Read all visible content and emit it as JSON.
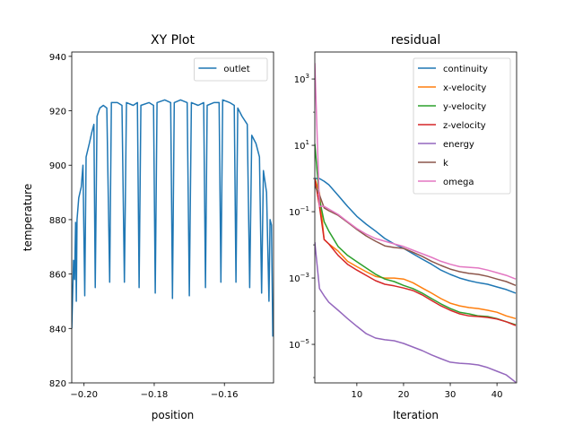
{
  "chart_data": [
    {
      "type": "line",
      "title": "XY Plot",
      "xlabel": "position",
      "ylabel": "temperature",
      "xlim": [
        -0.2035,
        -0.146
      ],
      "ylim": [
        820,
        941.6
      ],
      "xticks": [
        -0.2,
        -0.18,
        -0.16
      ],
      "xtick_labels": [
        "−0.20",
        "−0.18",
        "−0.16"
      ],
      "yticks": [
        820,
        840,
        860,
        880,
        900,
        920,
        940
      ],
      "ytick_labels": [
        "820",
        "840",
        "860",
        "880",
        "900",
        "920",
        "940"
      ],
      "grid": false,
      "legend": "top-right",
      "series": [
        {
          "name": "outlet",
          "color": "#1f77b4",
          "points": [
            [
              -0.2035,
              840
            ],
            [
              -0.203,
              865
            ],
            [
              -0.2027,
              858
            ],
            [
              -0.2024,
              879
            ],
            [
              -0.2022,
              850
            ],
            [
              -0.202,
              880
            ],
            [
              -0.2015,
              888
            ],
            [
              -0.2008,
              892
            ],
            [
              -0.2003,
              900
            ],
            [
              -0.1998,
              852
            ],
            [
              -0.1994,
              903
            ],
            [
              -0.1985,
              908
            ],
            [
              -0.1978,
              912
            ],
            [
              -0.1972,
              915
            ],
            [
              -0.1968,
              855
            ],
            [
              -0.1963,
              918
            ],
            [
              -0.1955,
              921
            ],
            [
              -0.1945,
              922
            ],
            [
              -0.1935,
              921
            ],
            [
              -0.1927,
              857
            ],
            [
              -0.1922,
              923
            ],
            [
              -0.1905,
              923
            ],
            [
              -0.1892,
              922
            ],
            [
              -0.1885,
              857
            ],
            [
              -0.1879,
              923
            ],
            [
              -0.186,
              922
            ],
            [
              -0.1848,
              923
            ],
            [
              -0.1843,
              855
            ],
            [
              -0.1838,
              922
            ],
            [
              -0.1815,
              923
            ],
            [
              -0.1802,
              922
            ],
            [
              -0.1797,
              853
            ],
            [
              -0.1792,
              923
            ],
            [
              -0.177,
              924
            ],
            [
              -0.1753,
              923
            ],
            [
              -0.1748,
              851
            ],
            [
              -0.1743,
              923
            ],
            [
              -0.1725,
              924
            ],
            [
              -0.1706,
              923
            ],
            [
              -0.17,
              852
            ],
            [
              -0.1694,
              923
            ],
            [
              -0.1675,
              922
            ],
            [
              -0.1659,
              923
            ],
            [
              -0.1654,
              855
            ],
            [
              -0.1649,
              922
            ],
            [
              -0.163,
              923
            ],
            [
              -0.1615,
              923
            ],
            [
              -0.161,
              857
            ],
            [
              -0.1605,
              924
            ],
            [
              -0.1585,
              923
            ],
            [
              -0.1572,
              922
            ],
            [
              -0.1567,
              857
            ],
            [
              -0.1562,
              921
            ],
            [
              -0.155,
              918
            ],
            [
              -0.1535,
              915
            ],
            [
              -0.1528,
              855
            ],
            [
              -0.1522,
              911
            ],
            [
              -0.151,
              908
            ],
            [
              -0.15,
              903
            ],
            [
              -0.1494,
              853
            ],
            [
              -0.1489,
              898
            ],
            [
              -0.148,
              890
            ],
            [
              -0.1473,
              850
            ],
            [
              -0.147,
              880
            ],
            [
              -0.1466,
              878
            ],
            [
              -0.1462,
              837
            ]
          ]
        }
      ]
    },
    {
      "type": "line",
      "title": "residual",
      "xlabel": "Iteration",
      "ylabel": "",
      "yscale": "log",
      "xlim": [
        1,
        44.2
      ],
      "ylim": [
        6.9e-07,
        6500
      ],
      "xticks": [
        10,
        20,
        30,
        40
      ],
      "xtick_labels": [
        "10",
        "20",
        "30",
        "40"
      ],
      "yticks": [
        1000,
        10,
        0.1,
        0.001,
        1e-05
      ],
      "ytick_labels": [
        [
          "10",
          "3"
        ],
        [
          "10",
          "1"
        ],
        [
          "10",
          "−1"
        ],
        [
          "10",
          "−3"
        ],
        [
          "10",
          "−5"
        ]
      ],
      "yminor": [
        10000,
        100,
        1,
        0.01,
        0.0001,
        1e-06
      ],
      "grid": false,
      "legend": "top-right",
      "x": [
        1,
        2,
        3,
        4,
        6,
        8,
        10,
        12,
        14,
        16,
        18,
        20,
        22,
        24,
        26,
        28,
        30,
        32,
        34,
        36,
        38,
        40,
        42,
        44
      ],
      "series": [
        {
          "name": "continuity",
          "color": "#1f77b4",
          "values": [
            1,
            1,
            0.83,
            0.65,
            0.31,
            0.145,
            0.072,
            0.042,
            0.026,
            0.0155,
            0.0107,
            0.0078,
            0.0054,
            0.0037,
            0.0026,
            0.00174,
            0.00129,
            0.001,
            0.00083,
            0.00072,
            0.00065,
            0.00054,
            0.00045,
            0.00035
          ]
        },
        {
          "name": "x-velocity",
          "color": "#ff7f0e",
          "values": [
            1,
            0.37,
            0.0145,
            0.0107,
            0.0065,
            0.0032,
            0.0022,
            0.00155,
            0.00112,
            0.001,
            0.001,
            0.00093,
            0.00072,
            0.0005,
            0.00035,
            0.00024,
            0.000174,
            0.000145,
            0.000129,
            0.00012,
            0.000107,
            9.3e-05,
            7.2e-05,
            6e-05
          ]
        },
        {
          "name": "y-velocity",
          "color": "#2ca02c",
          "values": [
            11,
            0.24,
            0.05,
            0.026,
            0.0089,
            0.0048,
            0.0031,
            0.002,
            0.0013,
            0.00093,
            0.00078,
            0.0006,
            0.00048,
            0.00035,
            0.00024,
            0.000166,
            0.00012,
            9.3e-05,
            8.3e-05,
            7.2e-05,
            6.9e-05,
            6e-05,
            4.8e-05,
            3.9e-05
          ]
        },
        {
          "name": "z-velocity",
          "color": "#d62728",
          "values": [
            1,
            0.145,
            0.0145,
            0.0107,
            0.0048,
            0.0026,
            0.00174,
            0.0012,
            0.00083,
            0.00065,
            0.00058,
            0.0005,
            0.00042,
            0.00031,
            0.00021,
            0.000145,
            0.000107,
            8.3e-05,
            7.2e-05,
            6.9e-05,
            6.5e-05,
            5.8e-05,
            4.8e-05,
            3.7e-05
          ]
        },
        {
          "name": "energy",
          "color": "#9467bd",
          "values": [
            0.012,
            0.00048,
            0.00029,
            0.000186,
            0.000107,
            6e-05,
            3.5e-05,
            2.1e-05,
            1.55e-05,
            1.38e-05,
            1.29e-05,
            1.07e-05,
            8.3e-06,
            6.5e-06,
            4.8e-06,
            3.7e-06,
            2.9e-06,
            2.7e-06,
            2.6e-06,
            2.4e-06,
            2e-06,
            1.55e-06,
            1.2e-06,
            7.2e-07
          ]
        },
        {
          "name": "k",
          "color": "#8c564b",
          "values": [
            0.6,
            0.32,
            0.13,
            0.107,
            0.078,
            0.048,
            0.029,
            0.0186,
            0.0129,
            0.0093,
            0.0083,
            0.0078,
            0.006,
            0.0045,
            0.0032,
            0.0024,
            0.00186,
            0.00155,
            0.00138,
            0.00129,
            0.00112,
            0.00093,
            0.00078,
            0.0006
          ]
        },
        {
          "name": "omega",
          "color": "#e377c2",
          "values": [
            3000,
            0.145,
            0.145,
            0.12,
            0.083,
            0.05,
            0.031,
            0.021,
            0.0155,
            0.0129,
            0.0107,
            0.0089,
            0.0069,
            0.0054,
            0.0042,
            0.0032,
            0.0026,
            0.0022,
            0.0021,
            0.002,
            0.00174,
            0.00145,
            0.0012,
            0.00093
          ]
        }
      ]
    }
  ]
}
